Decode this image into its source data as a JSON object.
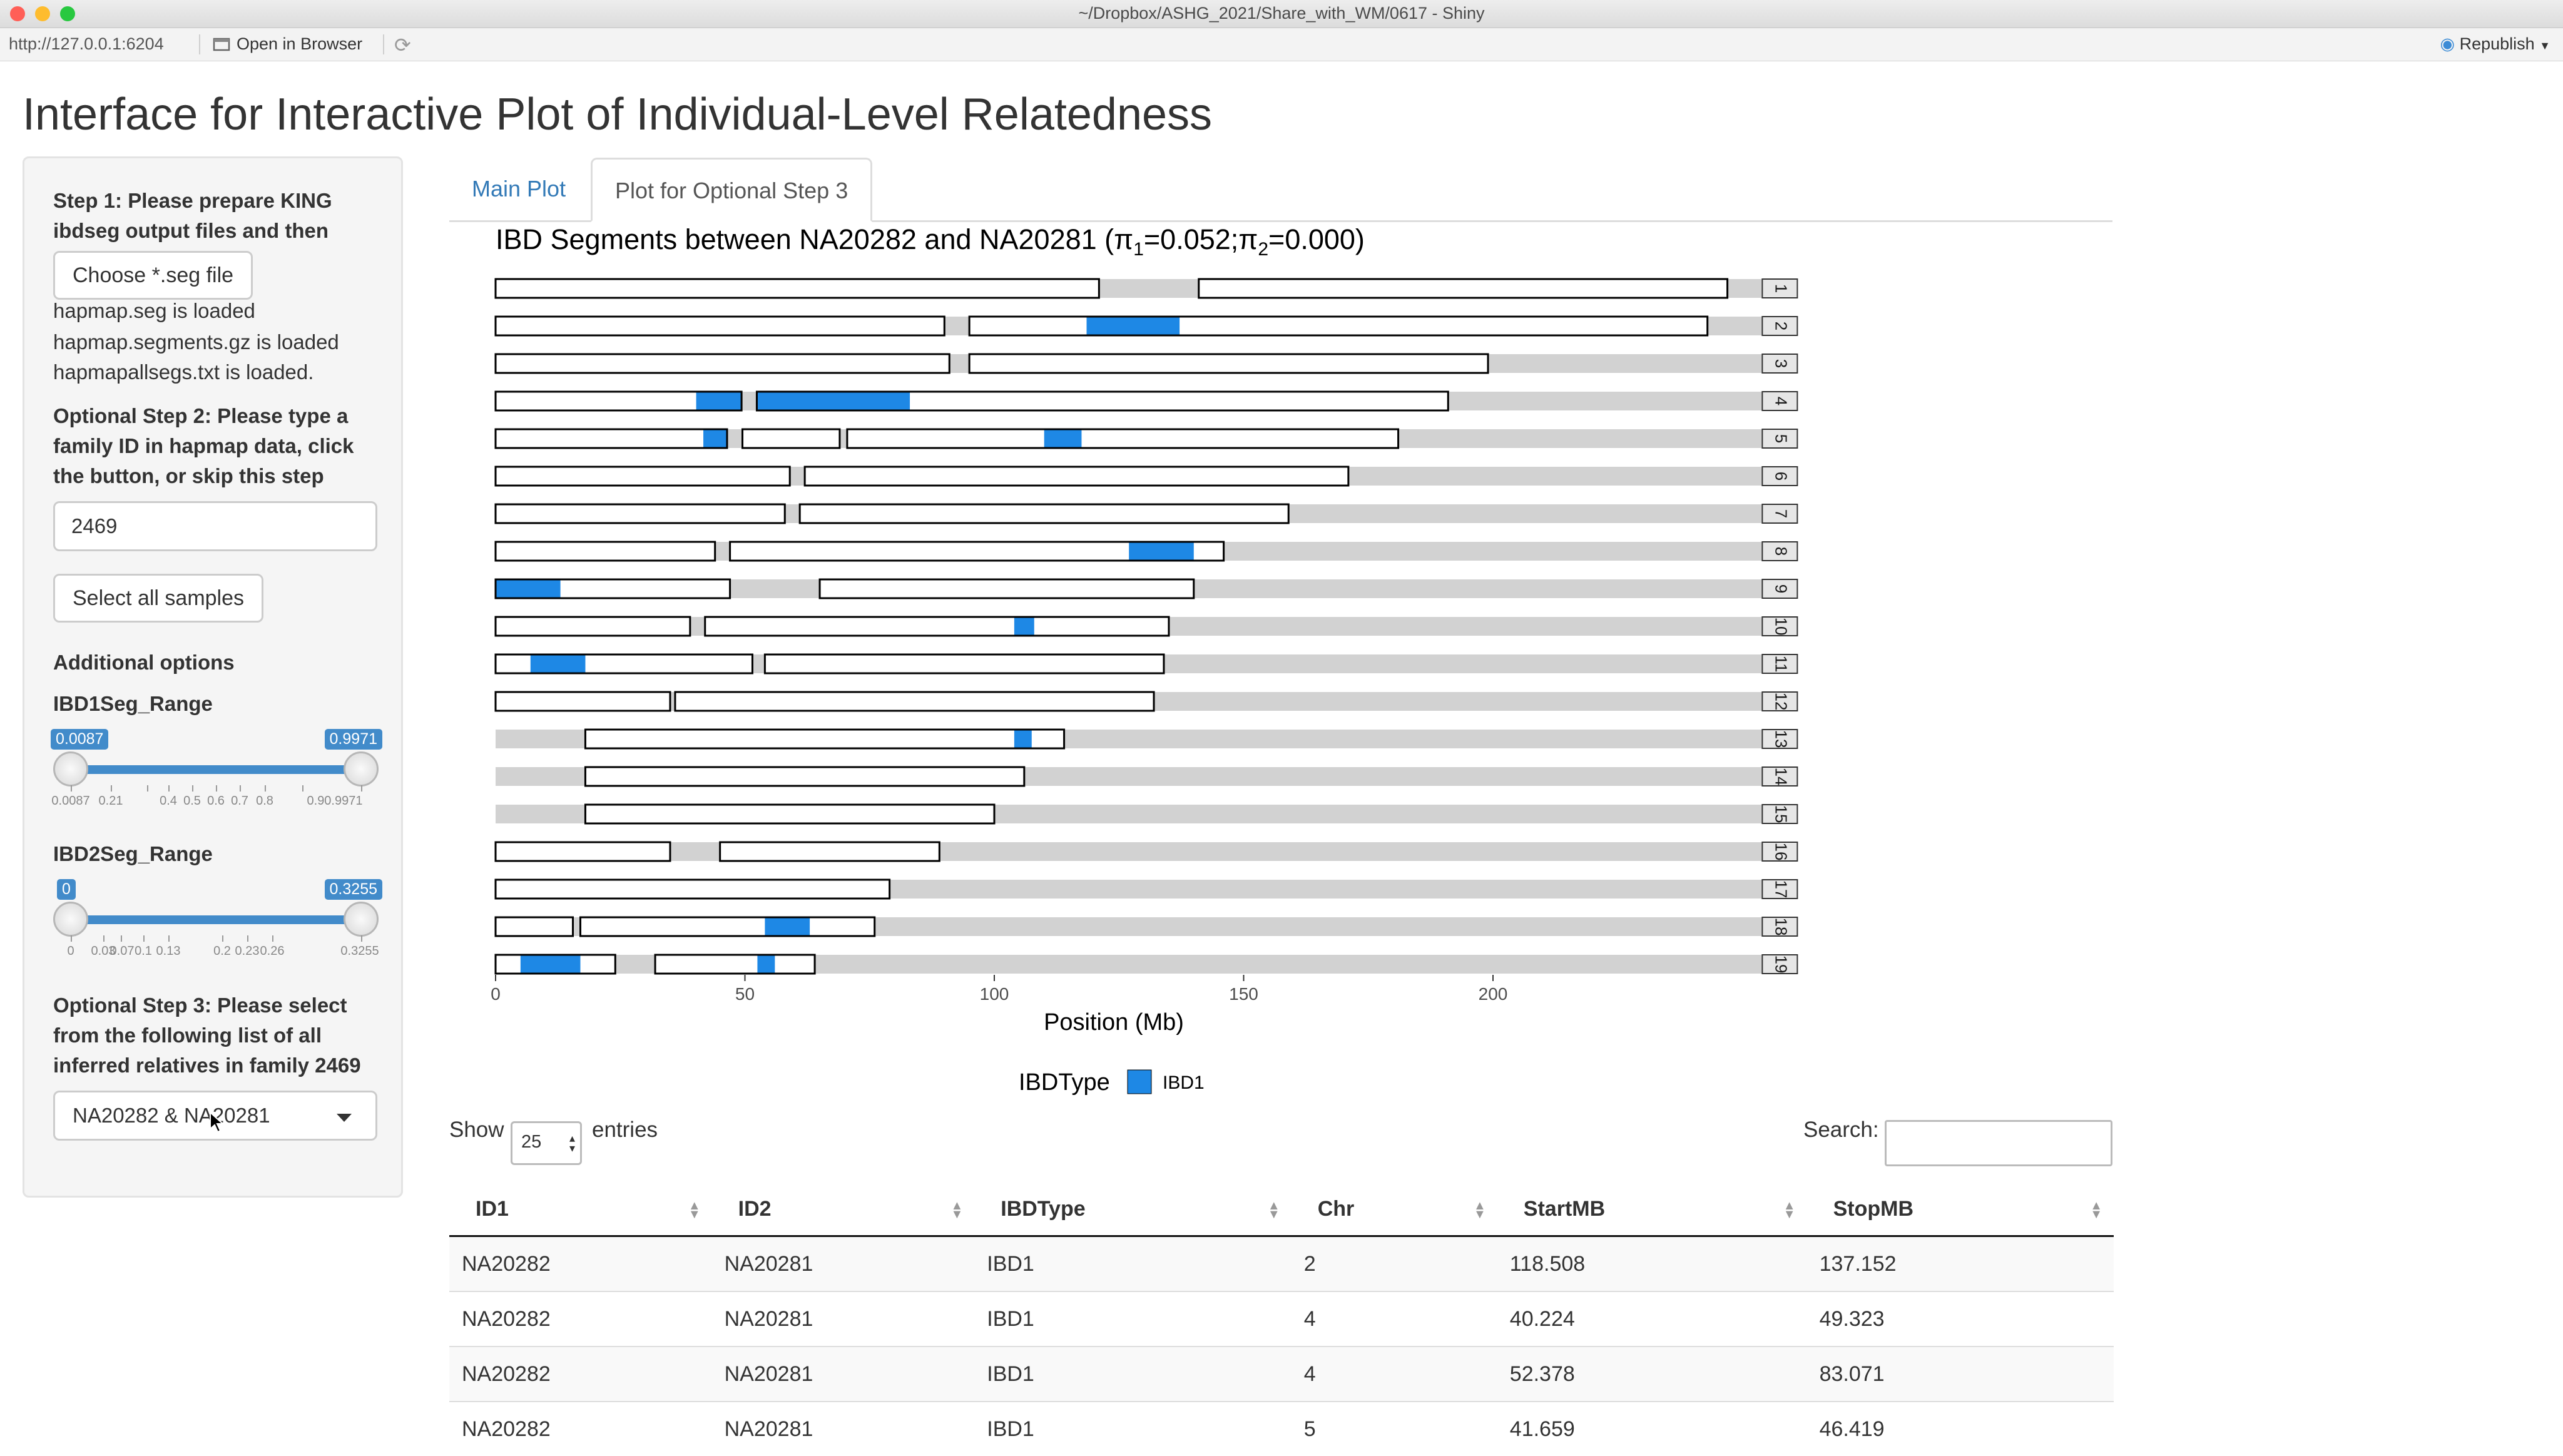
{
  "window": {
    "title": "~/Dropbox/ASHG_2021/Share_with_WM/0617 - Shiny"
  },
  "toolbar": {
    "url": "http://127.0.0.1:6204",
    "open_browser": "Open in Browser",
    "republish": "Republish"
  },
  "app": {
    "title": "Interface for Interactive Plot of Individual-Level Relatedness"
  },
  "sidebar": {
    "step1_label": "Step 1: Please prepare KING ibdseg output files and then",
    "choose_file": "Choose *.seg file",
    "loaded": [
      "hapmap.seg is loaded",
      "hapmap.segments.gz is loaded",
      "hapmapallsegs.txt is loaded."
    ],
    "step2_label": "Optional Step 2: Please type a family ID in hapmap data, click the button, or skip this step",
    "family_value": "2469",
    "select_all": "Select all samples",
    "additional": "Additional options",
    "ibd1": {
      "label": "IBD1Seg_Range",
      "min_label": "0.0087",
      "max_label": "0.9971",
      "from": 0.0087,
      "to": 0.9971,
      "ticks": [
        "0.0087",
        "0.21",
        "0.4",
        "0.5",
        "0.6",
        "0.7",
        "0.8",
        "0.90.9971"
      ]
    },
    "ibd2": {
      "label": "IBD2Seg_Range",
      "min_label": "0",
      "max_label": "0.3255",
      "from": 0,
      "to": 0.3255,
      "ticks": [
        "0",
        "0.03",
        "0.07",
        "0.1",
        "0.13",
        "0.2",
        "0.23",
        "0.26",
        "0.3255"
      ]
    },
    "step3_label": "Optional Step 3: Please select from the following list of all inferred relatives in family 2469",
    "pair_value": "NA20282 & NA20281"
  },
  "tabs": [
    {
      "label": "Main Plot",
      "active": false
    },
    {
      "label": "Plot for Optional Step 3",
      "active": true
    }
  ],
  "chart_data": {
    "type": "bar",
    "title_main": "IBD Segments between NA20282 and NA20281 (",
    "pi1_text": "=0.052;",
    "pi2_text": "=0.000)",
    "pi_symbol": "π",
    "pi_sub1": "1",
    "pi_sub2": "2",
    "xlabel": "Position (Mb)",
    "xlim": [
      0,
      254
    ],
    "x_ticks": [
      0,
      50,
      100,
      150,
      200
    ],
    "legend_title": "IBDType",
    "legend_label": "IBD1",
    "ibd_color": "#1e88e5",
    "chromosomes": [
      {
        "chr": 1,
        "length": 247,
        "boxes": [
          [
            0,
            121
          ],
          [
            141,
            247
          ]
        ],
        "ibd": []
      },
      {
        "chr": 2,
        "length": 243,
        "boxes": [
          [
            0,
            90
          ],
          [
            95,
            243
          ]
        ],
        "ibd": [
          [
            118.508,
            137.152
          ]
        ]
      },
      {
        "chr": 3,
        "length": 199,
        "boxes": [
          [
            0,
            91
          ],
          [
            95,
            199
          ]
        ],
        "ibd": []
      },
      {
        "chr": 4,
        "length": 191,
        "boxes": [
          [
            0,
            49.323
          ],
          [
            52.378,
            191
          ]
        ],
        "ibd": [
          [
            40.224,
            49.323
          ],
          [
            52.378,
            83.071
          ]
        ]
      },
      {
        "chr": 5,
        "length": 181,
        "boxes": [
          [
            0,
            46.419
          ],
          [
            49.5,
            69
          ],
          [
            70.5,
            181
          ]
        ],
        "ibd": [
          [
            41.659,
            46.419
          ],
          [
            110,
            117.5
          ]
        ]
      },
      {
        "chr": 6,
        "length": 171,
        "boxes": [
          [
            0,
            59
          ],
          [
            62,
            171
          ]
        ],
        "ibd": []
      },
      {
        "chr": 7,
        "length": 159,
        "boxes": [
          [
            0,
            58
          ],
          [
            61,
            159
          ]
        ],
        "ibd": []
      },
      {
        "chr": 8,
        "length": 146,
        "boxes": [
          [
            0,
            44
          ],
          [
            47,
            146
          ]
        ],
        "ibd": [
          [
            127,
            140
          ]
        ]
      },
      {
        "chr": 9,
        "length": 140,
        "boxes": [
          [
            0,
            47
          ],
          [
            65,
            140
          ]
        ],
        "ibd": [
          [
            0,
            13
          ]
        ]
      },
      {
        "chr": 10,
        "length": 135,
        "boxes": [
          [
            0,
            39
          ],
          [
            42,
            135
          ]
        ],
        "ibd": [
          [
            104,
            108
          ]
        ]
      },
      {
        "chr": 11,
        "length": 134,
        "boxes": [
          [
            0,
            51.5
          ],
          [
            54,
            134
          ]
        ],
        "ibd": [
          [
            7,
            18
          ]
        ]
      },
      {
        "chr": 12,
        "length": 132,
        "boxes": [
          [
            0,
            35
          ],
          [
            36,
            132
          ]
        ],
        "ibd": []
      },
      {
        "chr": 13,
        "length": 114,
        "boxes": [
          [
            18,
            114
          ]
        ],
        "ibd": [
          [
            104,
            107.5
          ]
        ]
      },
      {
        "chr": 14,
        "length": 106,
        "boxes": [
          [
            18,
            106
          ]
        ],
        "ibd": []
      },
      {
        "chr": 15,
        "length": 100,
        "boxes": [
          [
            18,
            100
          ]
        ],
        "ibd": []
      },
      {
        "chr": 16,
        "length": 89,
        "boxes": [
          [
            0,
            35
          ],
          [
            45,
            89
          ]
        ],
        "ibd": []
      },
      {
        "chr": 17,
        "length": 79,
        "boxes": [
          [
            0,
            79
          ]
        ],
        "ibd": []
      },
      {
        "chr": 18,
        "length": 76,
        "boxes": [
          [
            0,
            15.5
          ],
          [
            17,
            76
          ]
        ],
        "ibd": [
          [
            54,
            63
          ]
        ]
      },
      {
        "chr": 19,
        "length": 64,
        "boxes": [
          [
            0,
            24
          ],
          [
            32,
            64
          ]
        ],
        "ibd": [
          [
            5,
            17
          ],
          [
            52.5,
            56
          ]
        ]
      }
    ]
  },
  "datatable": {
    "show": "Show",
    "entries": "entries",
    "length_value": "25",
    "search_label": "Search:",
    "columns": [
      "ID1",
      "ID2",
      "IBDType",
      "Chr",
      "StartMB",
      "StopMB"
    ],
    "rows": [
      [
        "NA20282",
        "NA20281",
        "IBD1",
        "2",
        "118.508",
        "137.152"
      ],
      [
        "NA20282",
        "NA20281",
        "IBD1",
        "4",
        "40.224",
        "49.323"
      ],
      [
        "NA20282",
        "NA20281",
        "IBD1",
        "4",
        "52.378",
        "83.071"
      ],
      [
        "NA20282",
        "NA20281",
        "IBD1",
        "5",
        "41.659",
        "46.419"
      ]
    ]
  }
}
